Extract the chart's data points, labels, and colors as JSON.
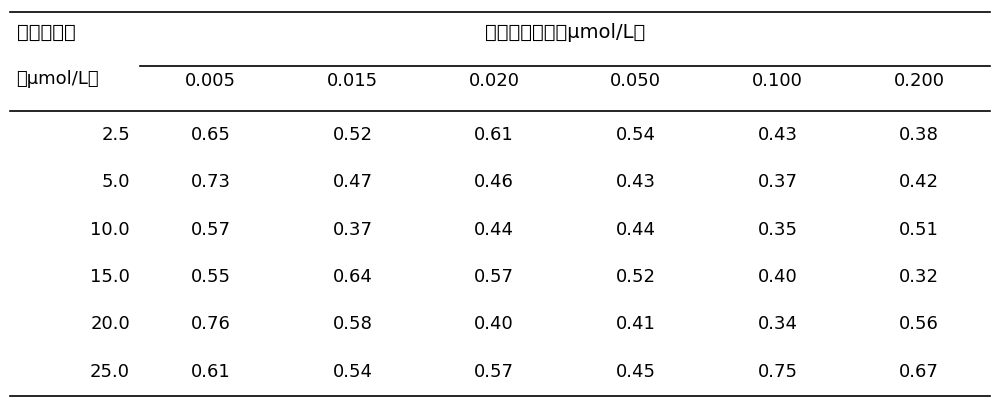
{
  "col_header_top": "阿法替尼浓度（μmol/L）",
  "col_header_sub": [
    "姜黄素浓度",
    "（μmol/L）"
  ],
  "col_labels": [
    "0.005",
    "0.015",
    "0.020",
    "0.050",
    "0.100",
    "0.200"
  ],
  "row_labels": [
    "2.5",
    "5.0",
    "10.0",
    "15.0",
    "20.0",
    "25.0"
  ],
  "data": [
    [
      0.65,
      0.52,
      0.61,
      0.54,
      0.43,
      0.38
    ],
    [
      0.73,
      0.47,
      0.46,
      0.43,
      0.37,
      0.42
    ],
    [
      0.57,
      0.37,
      0.44,
      0.44,
      0.35,
      0.51
    ],
    [
      0.55,
      0.64,
      0.57,
      0.52,
      0.4,
      0.32
    ],
    [
      0.76,
      0.58,
      0.4,
      0.41,
      0.34,
      0.56
    ],
    [
      0.61,
      0.54,
      0.57,
      0.45,
      0.75,
      0.67
    ]
  ],
  "bg_color": "#ffffff",
  "text_color": "#000000",
  "font_size": 13,
  "header_font_size": 14
}
